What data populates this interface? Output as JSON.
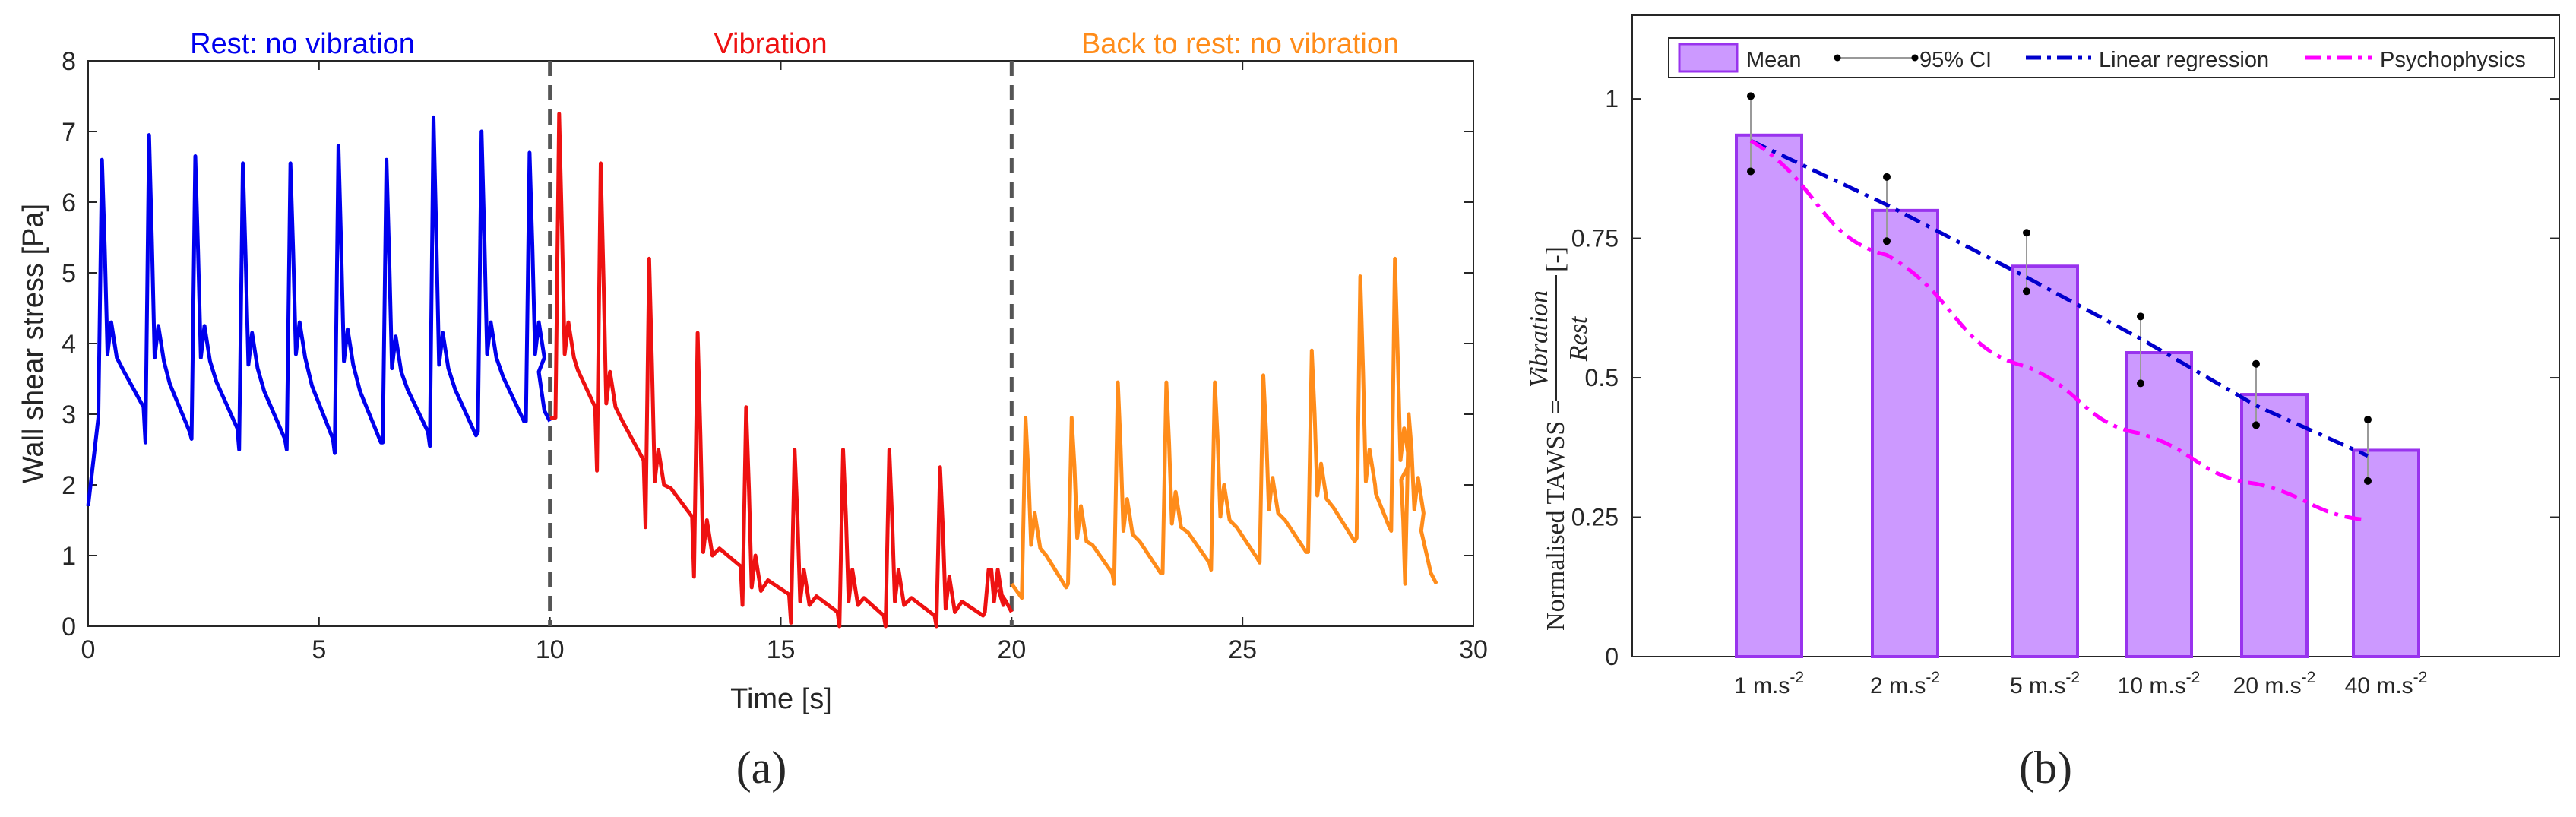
{
  "chart_data": [
    {
      "panel": "(a)",
      "type": "line",
      "xlabel": "Time [s]",
      "ylabel": "Wall shear stress [Pa]",
      "xlim": [
        0,
        30
      ],
      "ylim": [
        0,
        8
      ],
      "xticks": [
        0,
        5,
        10,
        15,
        20,
        25,
        30
      ],
      "yticks": [
        0,
        1,
        2,
        3,
        4,
        5,
        6,
        7,
        8
      ],
      "dividers": [
        10,
        20
      ],
      "phase_labels": [
        {
          "text": "Rest: no vibration",
          "color": "#0000ee"
        },
        {
          "text": "Vibration",
          "color": "#ee1111"
        },
        {
          "text": "Back to rest: no vibration",
          "color": "#ff8c1a"
        }
      ],
      "series": [
        {
          "name": "Rest",
          "color": "#0000ee",
          "t_start": 0.0,
          "t_end": 10.0,
          "beat_times": [
            0.3,
            1.32,
            2.32,
            3.35,
            4.38,
            5.42,
            6.46,
            7.48,
            8.52,
            9.56
          ],
          "peaks": [
            6.6,
            6.95,
            6.65,
            6.55,
            6.55,
            6.8,
            6.6,
            7.2,
            7.0,
            6.7
          ],
          "baseline": [
            2.95,
            2.6,
            2.65,
            2.5,
            2.5,
            2.45,
            2.6,
            2.55,
            2.75,
            2.9
          ],
          "secondary": [
            4.3,
            4.25,
            4.25,
            4.15,
            4.3,
            4.2,
            4.1,
            4.15,
            4.3,
            4.3
          ],
          "start_value": 1.7
        },
        {
          "name": "Vibration",
          "color": "#ee1111",
          "t_start": 10.0,
          "t_end": 20.0,
          "beat_times": [
            10.2,
            11.1,
            12.15,
            13.2,
            14.25,
            15.3,
            16.35,
            17.35,
            18.45,
            19.5
          ],
          "peaks": [
            7.25,
            6.55,
            5.2,
            4.15,
            3.1,
            2.5,
            2.5,
            2.5,
            2.25,
            0.8
          ],
          "baseline": [
            2.95,
            2.2,
            1.4,
            0.7,
            0.3,
            0.05,
            0.0,
            0.0,
            0.0,
            0.2
          ],
          "secondary": [
            4.3,
            3.6,
            2.5,
            1.5,
            1.0,
            0.8,
            0.8,
            0.8,
            0.7,
            0.8
          ],
          "start_value": 2.95
        },
        {
          "name": "Back to rest",
          "color": "#ff8c1a",
          "t_start": 20.0,
          "t_end": 29.2,
          "beat_times": [
            20.3,
            21.3,
            22.3,
            23.35,
            24.4,
            25.45,
            26.5,
            27.55,
            28.3,
            28.6
          ],
          "peaks": [
            2.95,
            2.95,
            3.45,
            3.45,
            3.45,
            3.55,
            3.9,
            4.95,
            5.2,
            3.0
          ],
          "baseline": [
            0.4,
            0.6,
            0.6,
            0.75,
            0.8,
            0.9,
            1.05,
            1.25,
            1.35,
            0.6
          ],
          "secondary": [
            1.6,
            1.7,
            1.8,
            1.9,
            2.0,
            2.1,
            2.3,
            2.5,
            2.8,
            2.1
          ],
          "start_value": 0.6
        }
      ]
    },
    {
      "panel": "(b)",
      "type": "bar",
      "ylabel": "Normalised TAWSS = Vibration / Rest [-]",
      "ylabel_prefix": "Normalised TAWSS = ",
      "ylabel_num": "Vibration",
      "ylabel_den": "Rest",
      "ylabel_suffix": "[-]",
      "ylim": [
        0,
        1.15
      ],
      "yticks": [
        "0",
        "0.25",
        "0.5",
        "0.75",
        "1"
      ],
      "ytick_values": [
        0,
        0.25,
        0.5,
        0.75,
        1
      ],
      "categories": [
        "1 m.s",
        "2 m.s",
        "5 m.s",
        "10 m.s",
        "20 m.s",
        "40 m.s"
      ],
      "category_superscript": "-2",
      "acceleration": [
        1,
        2,
        5,
        10,
        20,
        40
      ],
      "series": [
        {
          "name": "Mean",
          "values": [
            0.935,
            0.8,
            0.7,
            0.545,
            0.47,
            0.37
          ],
          "color": "#cc99ff",
          "edge": "#9933ee"
        },
        {
          "name": "95% CI",
          "lower": [
            0.87,
            0.745,
            0.655,
            0.49,
            0.415,
            0.315
          ],
          "upper": [
            1.005,
            0.86,
            0.76,
            0.61,
            0.525,
            0.425
          ],
          "color": "#000000"
        },
        {
          "name": "Linear regression",
          "values": [
            0.925,
            0.81,
            0.68,
            0.57,
            0.45,
            0.36
          ],
          "color": "#0000cc"
        },
        {
          "name": "Psychophysics",
          "values": [
            0.925,
            0.72,
            0.52,
            0.4,
            0.31,
            0.245
          ],
          "color": "#ff00ff"
        }
      ],
      "legend": [
        "Mean",
        "95% CI",
        "Linear regression",
        "Psychophysics"
      ],
      "legend_position": "top"
    }
  ]
}
